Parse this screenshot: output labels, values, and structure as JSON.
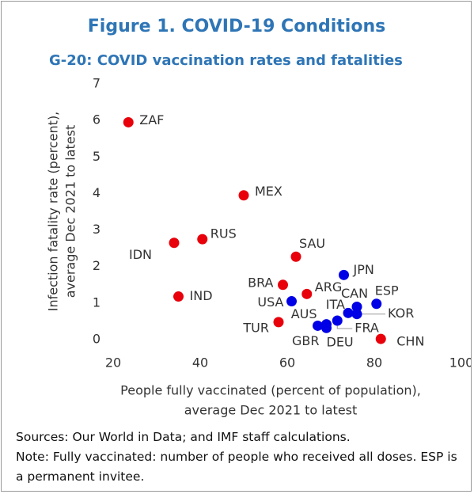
{
  "chart_data": {
    "type": "scatter",
    "title": "Figure 1. COVID-19 Conditions",
    "subtitle": "G-20: COVID vaccination rates and fatalities",
    "y_label": [
      "Infection fatality rate (percent),",
      "average Dec 2021 to latest"
    ],
    "x_label": [
      "People fully vaccinated (percent of population),",
      "average Dec 2021 to latest"
    ],
    "point_labels": [
      "ZAF",
      "MEX",
      "RUS",
      "IDN",
      "IND",
      "SAU",
      "BRA",
      "ARG",
      "TUR",
      "CHN",
      "JPN",
      "USA",
      "ESP",
      "CAN",
      "ITA",
      "KOR",
      "AUS",
      "GBR",
      "DEU",
      "FRA"
    ],
    "x": [
      23.5,
      50,
      40.5,
      34,
      35,
      62,
      59,
      64.5,
      58,
      81.5,
      73,
      61,
      80.5,
      76,
      74,
      76,
      69,
      67,
      69,
      71.5
    ],
    "values": [
      5.95,
      3.95,
      2.75,
      2.65,
      1.18,
      2.27,
      1.5,
      1.25,
      0.48,
      0.02,
      1.77,
      1.05,
      0.98,
      0.9,
      0.73,
      0.7,
      0.42,
      0.38,
      0.32,
      0.52
    ],
    "colors": [
      "#e8000b",
      "#e8000b",
      "#e8000b",
      "#e8000b",
      "#e8000b",
      "#e8000b",
      "#e8000b",
      "#e8000b",
      "#e8000b",
      "#e8000b",
      "#0000e6",
      "#0000e6",
      "#0000e6",
      "#0000e6",
      "#0000e6",
      "#0000e6",
      "#0000e6",
      "#0000e6",
      "#0000e6",
      "#0000e6"
    ],
    "xlim": [
      20,
      100
    ],
    "xticks": [
      20,
      40,
      60,
      80,
      100
    ],
    "ylim": [
      0,
      7
    ],
    "yticks": [
      0,
      1,
      2,
      3,
      4,
      5,
      6,
      7
    ],
    "title_color": "#2e75b6"
  },
  "notes": [
    "Sources: Our World in Data; and IMF staff calculations.",
    "Note: Fully vaccinated: number of people who received all doses. ESP is a permanent invitee."
  ]
}
